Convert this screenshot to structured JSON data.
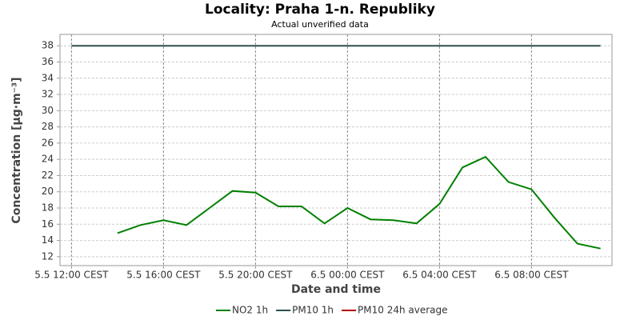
{
  "chart_data": {
    "type": "line",
    "title": "Locality: Praha 1-n. Republiky",
    "subtitle": "Actual unverified data",
    "x_label": "Date and time",
    "y_label": "Concentration [µg·m⁻³]",
    "categories": [
      "5.5 12:00 CEST",
      null,
      null,
      null,
      "5.5 16:00 CEST",
      null,
      null,
      null,
      "5.5 20:00 CEST",
      null,
      null,
      null,
      "6.5 00:00 CEST",
      null,
      null,
      null,
      "6.5 04:00 CEST",
      null,
      null,
      null,
      "6.5 08:00 CEST",
      null,
      null,
      null
    ],
    "series": [
      {
        "name": "NO2 1h",
        "color": "#008000",
        "values": [
          null,
          null,
          14.9,
          15.9,
          16.5,
          15.9,
          18.0,
          20.1,
          19.9,
          18.2,
          18.2,
          16.1,
          18.0,
          16.6,
          16.5,
          16.1,
          18.5,
          23.0,
          24.3,
          21.2,
          20.3,
          16.8,
          13.6,
          13.0
        ]
      },
      {
        "name": "PM10 1h",
        "color": "#2f4f4f",
        "values": [
          38,
          38,
          38,
          38,
          38,
          38,
          38,
          38,
          38,
          38,
          38,
          38,
          38,
          38,
          38,
          38,
          38,
          38,
          38,
          38,
          38,
          38,
          38,
          38
        ]
      },
      {
        "name": "PM10 24h average",
        "color": "#b00000",
        "values": [
          null,
          null,
          null,
          null,
          null,
          null,
          null,
          null,
          null,
          null,
          null,
          null,
          null,
          null,
          null,
          null,
          null,
          null,
          null,
          null,
          null,
          null,
          null,
          null
        ]
      }
    ],
    "ylim": [
      10.9,
      39.4
    ],
    "yticks": [
      12,
      14,
      16,
      18,
      20,
      22,
      24,
      26,
      28,
      30,
      32,
      34,
      36,
      38
    ],
    "grid": true
  }
}
